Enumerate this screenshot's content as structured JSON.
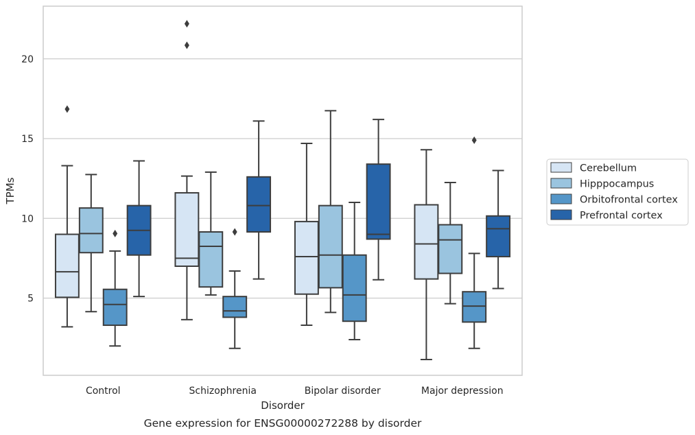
{
  "caption": "Gene expression for ENSG00000272288 by disorder",
  "chart_data": {
    "type": "box",
    "title": "",
    "xlabel": "Disorder",
    "ylabel": "TPMs",
    "categories": [
      "Control",
      "Schizophrenia",
      "Bipolar disorder",
      "Major depression"
    ],
    "ylim": [
      0.5,
      23.5
    ],
    "yticks": [
      5,
      10,
      15,
      20
    ],
    "grid": "horizontal",
    "legend_position": "right",
    "series": [
      {
        "name": "Cerebellum",
        "color": "#d6e5f4",
        "boxes": [
          {
            "whisker_low": 3.2,
            "q1": 5.05,
            "median": 6.65,
            "q3": 9.0,
            "whisker_high": 13.3,
            "outliers": [
              16.85
            ]
          },
          {
            "whisker_low": 3.65,
            "q1": 7.0,
            "median": 7.5,
            "q3": 11.6,
            "whisker_high": 12.65,
            "outliers": [
              20.85,
              22.2
            ]
          },
          {
            "whisker_low": 3.3,
            "q1": 5.25,
            "median": 7.6,
            "q3": 9.8,
            "whisker_high": 14.7,
            "outliers": []
          },
          {
            "whisker_low": 1.15,
            "q1": 6.2,
            "median": 8.4,
            "q3": 10.85,
            "whisker_high": 14.3,
            "outliers": []
          }
        ]
      },
      {
        "name": "Hipppocampus",
        "color": "#9ac4df",
        "boxes": [
          {
            "whisker_low": 4.15,
            "q1": 7.85,
            "median": 9.05,
            "q3": 10.65,
            "whisker_high": 12.75,
            "outliers": []
          },
          {
            "whisker_low": 5.2,
            "q1": 5.7,
            "median": 8.25,
            "q3": 9.15,
            "whisker_high": 12.9,
            "outliers": []
          },
          {
            "whisker_low": 4.1,
            "q1": 5.65,
            "median": 7.7,
            "q3": 10.8,
            "whisker_high": 16.75,
            "outliers": []
          },
          {
            "whisker_low": 4.65,
            "q1": 6.55,
            "median": 8.65,
            "q3": 9.6,
            "whisker_high": 12.25,
            "outliers": []
          }
        ]
      },
      {
        "name": "Orbitofrontal cortex",
        "color": "#5596c8",
        "boxes": [
          {
            "whisker_low": 2.0,
            "q1": 3.3,
            "median": 4.6,
            "q3": 5.55,
            "whisker_high": 7.95,
            "outliers": [
              9.05
            ]
          },
          {
            "whisker_low": 1.85,
            "q1": 3.8,
            "median": 4.2,
            "q3": 5.1,
            "whisker_high": 6.7,
            "outliers": [
              9.15
            ]
          },
          {
            "whisker_low": 2.4,
            "q1": 3.55,
            "median": 5.2,
            "q3": 7.7,
            "whisker_high": 11.0,
            "outliers": []
          },
          {
            "whisker_low": 1.85,
            "q1": 3.5,
            "median": 4.5,
            "q3": 5.4,
            "whisker_high": 7.8,
            "outliers": [
              14.9
            ]
          }
        ]
      },
      {
        "name": "Prefrontal cortex",
        "color": "#2764a9",
        "boxes": [
          {
            "whisker_low": 5.1,
            "q1": 7.7,
            "median": 9.25,
            "q3": 10.8,
            "whisker_high": 13.6,
            "outliers": []
          },
          {
            "whisker_low": 6.2,
            "q1": 9.15,
            "median": 10.8,
            "q3": 12.6,
            "whisker_high": 16.1,
            "outliers": []
          },
          {
            "whisker_low": 6.15,
            "q1": 8.7,
            "median": 9.0,
            "q3": 13.4,
            "whisker_high": 16.2,
            "outliers": []
          },
          {
            "whisker_low": 5.6,
            "q1": 7.6,
            "median": 9.35,
            "q3": 10.15,
            "whisker_high": 13.0,
            "outliers": []
          }
        ]
      }
    ]
  }
}
